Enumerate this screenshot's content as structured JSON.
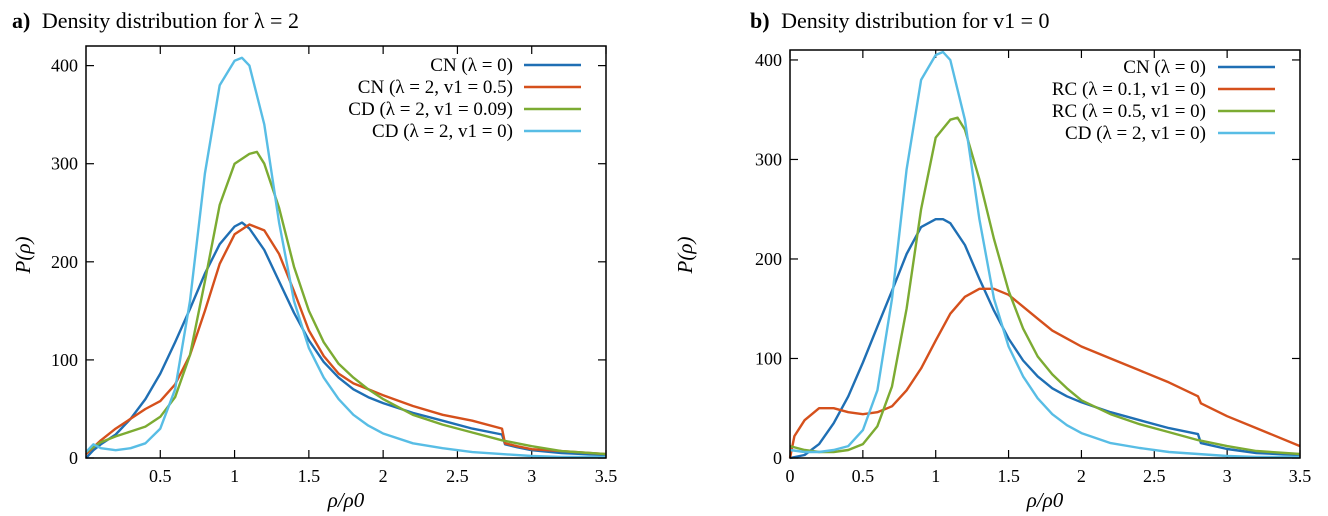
{
  "chart_data": [
    {
      "type": "line",
      "panel_letter": "a)",
      "title": "Density distribution for λ = 2",
      "xlabel": "ρ/ρ0",
      "ylabel": "P(ρ)",
      "xlim": [
        0,
        3.5
      ],
      "ylim": [
        0,
        420
      ],
      "x_ticks": [
        {
          "v": 0.5,
          "label": "0.5"
        },
        {
          "v": 1,
          "label": "1"
        },
        {
          "v": 1.5,
          "label": "1.5"
        },
        {
          "v": 2,
          "label": "2"
        },
        {
          "v": 2.5,
          "label": "2.5"
        },
        {
          "v": 3,
          "label": "3"
        },
        {
          "v": 3.5,
          "label": "3.5"
        }
      ],
      "y_ticks": [
        {
          "v": 0,
          "label": "0"
        },
        {
          "v": 100,
          "label": "100"
        },
        {
          "v": 200,
          "label": "200"
        },
        {
          "v": 300,
          "label": "300"
        },
        {
          "v": 400,
          "label": "400"
        }
      ],
      "legend_position": "top-right",
      "series": [
        {
          "name": "CN (λ = 0)",
          "color": "#1f6fb4",
          "x": [
            0.0,
            0.05,
            0.1,
            0.2,
            0.3,
            0.4,
            0.5,
            0.6,
            0.7,
            0.8,
            0.9,
            1.0,
            1.05,
            1.1,
            1.2,
            1.3,
            1.4,
            1.5,
            1.6,
            1.7,
            1.8,
            1.9,
            2.0,
            2.2,
            2.4,
            2.6,
            2.8,
            2.82,
            2.9,
            3.0,
            3.2,
            3.5
          ],
          "y": [
            0,
            8,
            14,
            24,
            40,
            60,
            86,
            118,
            152,
            188,
            218,
            236,
            240,
            234,
            212,
            180,
            148,
            120,
            98,
            82,
            70,
            62,
            56,
            46,
            38,
            30,
            24,
            14,
            11,
            8,
            5,
            3
          ]
        },
        {
          "name": "CN (λ = 2, v1 = 0.5)",
          "color": "#d5501c",
          "x": [
            0.0,
            0.1,
            0.2,
            0.3,
            0.4,
            0.5,
            0.6,
            0.7,
            0.8,
            0.9,
            1.0,
            1.1,
            1.2,
            1.3,
            1.4,
            1.5,
            1.6,
            1.7,
            1.8,
            1.9,
            2.0,
            2.2,
            2.4,
            2.6,
            2.8,
            2.82,
            2.9,
            3.0,
            3.2,
            3.5
          ],
          "y": [
            4,
            18,
            30,
            40,
            50,
            58,
            75,
            105,
            150,
            198,
            228,
            238,
            232,
            208,
            170,
            130,
            104,
            86,
            76,
            70,
            64,
            53,
            44,
            38,
            30,
            15,
            12,
            9,
            7,
            4
          ]
        },
        {
          "name": "CD (λ = 2, v1 = 0.09)",
          "color": "#7cab32",
          "x": [
            0.0,
            0.1,
            0.2,
            0.3,
            0.4,
            0.5,
            0.6,
            0.7,
            0.8,
            0.9,
            1.0,
            1.1,
            1.15,
            1.2,
            1.3,
            1.4,
            1.5,
            1.6,
            1.7,
            1.8,
            1.9,
            2.0,
            2.2,
            2.4,
            2.6,
            2.8,
            3.0,
            3.2,
            3.5
          ],
          "y": [
            6,
            16,
            22,
            27,
            32,
            42,
            62,
            105,
            180,
            258,
            300,
            310,
            312,
            300,
            255,
            195,
            150,
            118,
            96,
            82,
            70,
            60,
            44,
            34,
            26,
            18,
            12,
            7,
            4
          ]
        },
        {
          "name": "CD (λ = 2, v1 = 0)",
          "color": "#58bde5",
          "x": [
            0.0,
            0.05,
            0.1,
            0.2,
            0.3,
            0.4,
            0.5,
            0.6,
            0.7,
            0.8,
            0.9,
            1.0,
            1.05,
            1.1,
            1.2,
            1.3,
            1.4,
            1.5,
            1.6,
            1.7,
            1.8,
            1.9,
            2.0,
            2.2,
            2.4,
            2.6,
            2.8,
            3.0,
            3.2,
            3.5
          ],
          "y": [
            6,
            14,
            10,
            8,
            10,
            15,
            30,
            70,
            160,
            290,
            380,
            405,
            408,
            400,
            340,
            240,
            160,
            112,
            82,
            60,
            44,
            33,
            25,
            15,
            10,
            6,
            4,
            2,
            1,
            1
          ]
        }
      ]
    },
    {
      "type": "line",
      "panel_letter": "b)",
      "title": "Density distribution for v1 = 0",
      "xlabel": "ρ/ρ0",
      "ylabel": "P(ρ)",
      "xlim": [
        0,
        3.5
      ],
      "ylim": [
        0,
        410
      ],
      "x_ticks": [
        {
          "v": 0,
          "label": "0"
        },
        {
          "v": 0.5,
          "label": "0.5"
        },
        {
          "v": 1,
          "label": "1"
        },
        {
          "v": 1.5,
          "label": "1.5"
        },
        {
          "v": 2,
          "label": "2"
        },
        {
          "v": 2.5,
          "label": "2.5"
        },
        {
          "v": 3,
          "label": "3"
        },
        {
          "v": 3.5,
          "label": "3.5"
        }
      ],
      "y_ticks": [
        {
          "v": 0,
          "label": "0"
        },
        {
          "v": 100,
          "label": "100"
        },
        {
          "v": 200,
          "label": "200"
        },
        {
          "v": 300,
          "label": "300"
        },
        {
          "v": 400,
          "label": "400"
        }
      ],
      "legend_position": "top-right",
      "series": [
        {
          "name": "CN (λ = 0)",
          "color": "#1f6fb4",
          "x": [
            0.0,
            0.1,
            0.2,
            0.3,
            0.4,
            0.5,
            0.6,
            0.7,
            0.8,
            0.9,
            1.0,
            1.05,
            1.1,
            1.2,
            1.3,
            1.4,
            1.5,
            1.6,
            1.7,
            1.8,
            1.9,
            2.0,
            2.2,
            2.4,
            2.6,
            2.8,
            2.82,
            3.0,
            3.2,
            3.5
          ],
          "y": [
            0,
            3,
            14,
            35,
            62,
            96,
            132,
            168,
            205,
            232,
            240,
            240,
            236,
            214,
            180,
            148,
            120,
            98,
            82,
            70,
            62,
            56,
            46,
            38,
            30,
            24,
            15,
            9,
            5,
            3
          ]
        },
        {
          "name": "RC (λ = 0.1, v1 = 0)",
          "color": "#d5501c",
          "x": [
            0.0,
            0.03,
            0.1,
            0.2,
            0.3,
            0.4,
            0.5,
            0.6,
            0.7,
            0.8,
            0.9,
            1.0,
            1.1,
            1.2,
            1.3,
            1.4,
            1.5,
            1.6,
            1.7,
            1.8,
            1.9,
            2.0,
            2.2,
            2.4,
            2.6,
            2.8,
            2.82,
            3.0,
            3.2,
            3.5
          ],
          "y": [
            0,
            22,
            38,
            50,
            50,
            46,
            44,
            46,
            52,
            68,
            90,
            118,
            145,
            162,
            170,
            170,
            164,
            152,
            140,
            128,
            120,
            112,
            100,
            88,
            76,
            62,
            55,
            42,
            30,
            12
          ]
        },
        {
          "name": "RC (λ = 0.5, v1 = 0)",
          "color": "#7cab32",
          "x": [
            0.0,
            0.1,
            0.2,
            0.3,
            0.4,
            0.5,
            0.6,
            0.7,
            0.8,
            0.9,
            1.0,
            1.1,
            1.15,
            1.2,
            1.3,
            1.4,
            1.5,
            1.6,
            1.7,
            1.8,
            1.9,
            2.0,
            2.2,
            2.4,
            2.6,
            2.8,
            3.0,
            3.2,
            3.5
          ],
          "y": [
            12,
            8,
            6,
            6,
            8,
            14,
            32,
            72,
            150,
            250,
            322,
            340,
            342,
            330,
            280,
            220,
            168,
            130,
            102,
            84,
            70,
            58,
            44,
            34,
            26,
            18,
            12,
            7,
            4
          ]
        },
        {
          "name": "CD (λ = 2,    v1 = 0)",
          "color": "#58bde5",
          "x": [
            0.0,
            0.1,
            0.2,
            0.3,
            0.4,
            0.5,
            0.6,
            0.7,
            0.8,
            0.9,
            1.0,
            1.05,
            1.1,
            1.2,
            1.3,
            1.4,
            1.5,
            1.6,
            1.7,
            1.8,
            1.9,
            2.0,
            2.2,
            2.4,
            2.6,
            2.8,
            3.0,
            3.2,
            3.5
          ],
          "y": [
            8,
            6,
            6,
            8,
            12,
            28,
            68,
            160,
            290,
            380,
            405,
            408,
            400,
            340,
            240,
            160,
            112,
            82,
            60,
            44,
            33,
            25,
            15,
            10,
            6,
            4,
            2,
            1,
            1
          ]
        }
      ]
    }
  ]
}
